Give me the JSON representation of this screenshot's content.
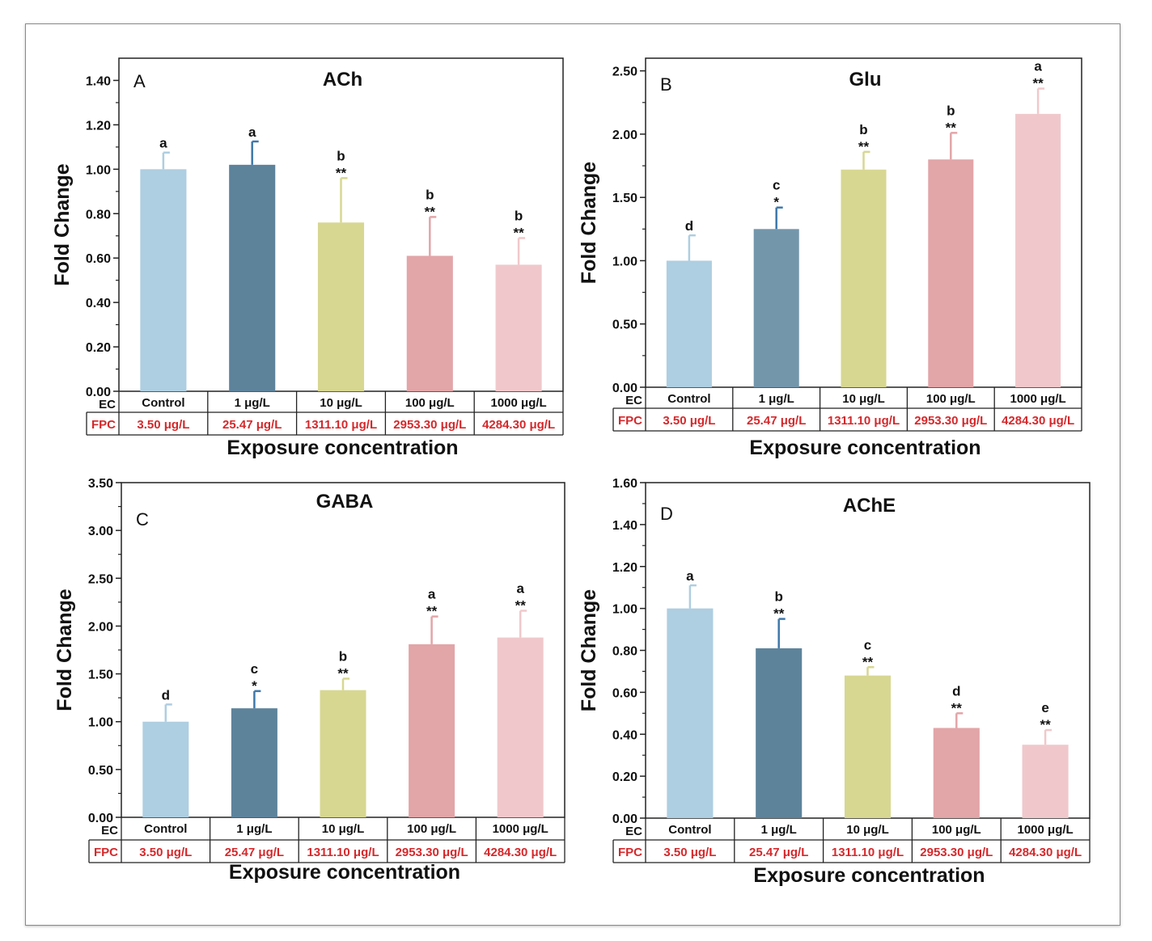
{
  "colors": {
    "bars": [
      "#aecee1",
      "#5d839b",
      "#d7d792",
      "#e2a5a8",
      "#f0c8cb"
    ],
    "bars_B": [
      "#aecee1",
      "#7396ab",
      "#d7d792",
      "#e2a5a8",
      "#f0c8cb"
    ],
    "error_bars": [
      "#aecee1",
      "#3f78aa",
      "#d7d792",
      "#e2a5a8",
      "#f0c8cb"
    ],
    "fpc_text": "#d6282b"
  },
  "shared": {
    "ec_label": "EC",
    "fpc_label": "FPC",
    "xlabel": "Exposure concentration",
    "ylabel": "Fold Change"
  },
  "chart_data": [
    {
      "type": "bar",
      "panel_letter": "A",
      "title": "ACh",
      "categories": [
        "Control",
        "1 μg/L",
        "10 μg/L",
        "100 μg/L",
        "1000 μg/L"
      ],
      "fpc": [
        "3.50 μg/L",
        "25.47 μg/L",
        "1311.10 μg/L",
        "2953.30 μg/L",
        "4284.30 μg/L"
      ],
      "values": [
        1.0,
        1.02,
        0.76,
        0.61,
        0.57
      ],
      "errors": [
        0.075,
        0.105,
        0.2,
        0.175,
        0.12
      ],
      "letters": [
        "a",
        "a",
        "b",
        "b",
        "b"
      ],
      "stars": [
        "",
        "",
        "**",
        "**",
        "**"
      ],
      "ylim": [
        0,
        1.5
      ],
      "yticks": [
        "0.00",
        "0.20",
        "0.40",
        "0.60",
        "0.80",
        "1.00",
        "1.20",
        "1.40"
      ],
      "xlabel": "Exposure concentration",
      "ylabel": "Fold Change"
    },
    {
      "type": "bar",
      "panel_letter": "B",
      "title": "Glu",
      "categories": [
        "Control",
        "1 μg/L",
        "10 μg/L",
        "100 μg/L",
        "1000 μg/L"
      ],
      "fpc": [
        "3.50 μg/L",
        "25.47 μg/L",
        "1311.10 μg/L",
        "2953.30 μg/L",
        "4284.30 μg/L"
      ],
      "values": [
        1.0,
        1.25,
        1.72,
        1.8,
        2.16
      ],
      "errors": [
        0.2,
        0.17,
        0.14,
        0.21,
        0.2
      ],
      "letters": [
        "d",
        "c",
        "b",
        "b",
        "a"
      ],
      "stars": [
        "",
        "*",
        "**",
        "**",
        "**"
      ],
      "ylim": [
        0,
        2.6
      ],
      "yticks": [
        "0.00",
        "0.50",
        "1.00",
        "1.50",
        "2.00",
        "2.50"
      ],
      "xlabel": "Exposure concentration",
      "ylabel": "Fold Change"
    },
    {
      "type": "bar",
      "panel_letter": "C",
      "title": "GABA",
      "categories": [
        "Control",
        "1 μg/L",
        "10 μg/L",
        "100 μg/L",
        "1000 μg/L"
      ],
      "fpc": [
        "3.50 μg/L",
        "25.47 μg/L",
        "1311.10 μg/L",
        "2953.30 μg/L",
        "4284.30 μg/L"
      ],
      "values": [
        1.0,
        1.14,
        1.33,
        1.81,
        1.88
      ],
      "errors": [
        0.18,
        0.18,
        0.12,
        0.29,
        0.28
      ],
      "letters": [
        "d",
        "c",
        "b",
        "a",
        "a"
      ],
      "stars": [
        "",
        "*",
        "**",
        "**",
        "**"
      ],
      "ylim": [
        0,
        3.5
      ],
      "yticks": [
        "0.00",
        "0.50",
        "1.00",
        "1.50",
        "2.00",
        "2.50",
        "3.00",
        "3.50"
      ],
      "xlabel": "Exposure concentration",
      "ylabel": "Fold Change"
    },
    {
      "type": "bar",
      "panel_letter": "D",
      "title": "AChE",
      "categories": [
        "Control",
        "1 μg/L",
        "10 μg/L",
        "100 μg/L",
        "1000 μg/L"
      ],
      "fpc": [
        "3.50 μg/L",
        "25.47 μg/L",
        "1311.10 μg/L",
        "2953.30 μg/L",
        "4284.30 μg/L"
      ],
      "values": [
        1.0,
        0.81,
        0.68,
        0.43,
        0.35
      ],
      "errors": [
        0.11,
        0.14,
        0.04,
        0.07,
        0.07
      ],
      "letters": [
        "a",
        "b",
        "c",
        "d",
        "e"
      ],
      "stars": [
        "",
        "**",
        "**",
        "**",
        "**"
      ],
      "ylim": [
        0,
        1.6
      ],
      "yticks": [
        "0.00",
        "0.20",
        "0.40",
        "0.60",
        "0.80",
        "1.00",
        "1.20",
        "1.40",
        "1.60"
      ],
      "xlabel": "Exposure concentration",
      "ylabel": "Fold Change"
    }
  ]
}
